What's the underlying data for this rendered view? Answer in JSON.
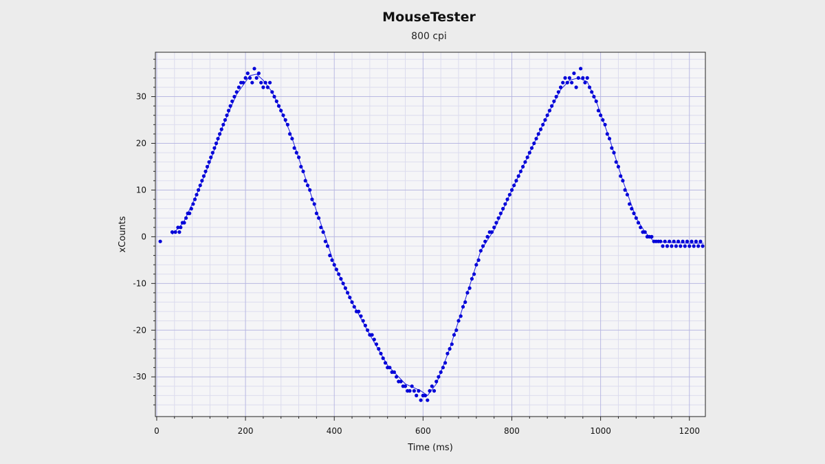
{
  "chart_data": {
    "type": "scatter",
    "title": "MouseTester",
    "subtitle": "800 cpi",
    "xlabel": "Time (ms)",
    "ylabel": "xCounts",
    "xlim": [
      -3,
      1236
    ],
    "ylim": [
      -38.5,
      39.5
    ],
    "x_ticks": [
      0,
      200,
      400,
      600,
      800,
      1000,
      1200
    ],
    "y_ticks": [
      -30,
      -20,
      -10,
      0,
      10,
      20,
      30
    ],
    "grid": true,
    "colors": {
      "background": "#ececec",
      "plot_area": "#f5f5f7",
      "major_grid": "#b8b8e2",
      "minor_grid": "#dcdcee",
      "series": "#0000d8",
      "line": "#1c1ce0"
    },
    "series": [
      {
        "points": [
          [
            8,
            -1
          ],
          [
            35,
            1
          ],
          [
            42,
            1
          ],
          [
            48,
            2
          ],
          [
            51,
            1
          ],
          [
            54,
            2
          ],
          [
            58,
            3
          ],
          [
            62,
            3
          ],
          [
            66,
            4
          ],
          [
            70,
            5
          ],
          [
            74,
            5
          ],
          [
            78,
            6
          ],
          [
            82,
            7
          ],
          [
            86,
            8
          ],
          [
            90,
            9
          ],
          [
            94,
            10
          ],
          [
            98,
            11
          ],
          [
            102,
            12
          ],
          [
            106,
            13
          ],
          [
            110,
            14
          ],
          [
            114,
            15
          ],
          [
            118,
            16
          ],
          [
            122,
            17
          ],
          [
            126,
            18
          ],
          [
            130,
            19
          ],
          [
            134,
            20
          ],
          [
            138,
            21
          ],
          [
            142,
            22
          ],
          [
            146,
            23
          ],
          [
            150,
            24
          ],
          [
            154,
            25
          ],
          [
            158,
            26
          ],
          [
            162,
            27
          ],
          [
            166,
            28
          ],
          [
            170,
            29
          ],
          [
            175,
            30
          ],
          [
            180,
            31
          ],
          [
            185,
            32
          ],
          [
            190,
            33
          ],
          [
            195,
            33
          ],
          [
            200,
            34
          ],
          [
            205,
            35
          ],
          [
            210,
            34
          ],
          [
            215,
            33
          ],
          [
            220,
            36
          ],
          [
            225,
            34
          ],
          [
            230,
            35
          ],
          [
            235,
            33
          ],
          [
            240,
            32
          ],
          [
            245,
            33
          ],
          [
            250,
            32
          ],
          [
            255,
            33
          ],
          [
            260,
            31
          ],
          [
            265,
            30
          ],
          [
            270,
            29
          ],
          [
            275,
            28
          ],
          [
            280,
            27
          ],
          [
            285,
            26
          ],
          [
            290,
            25
          ],
          [
            295,
            24
          ],
          [
            300,
            22
          ],
          [
            305,
            21
          ],
          [
            310,
            19
          ],
          [
            315,
            18
          ],
          [
            320,
            17
          ],
          [
            325,
            15
          ],
          [
            330,
            14
          ],
          [
            335,
            12
          ],
          [
            340,
            11
          ],
          [
            345,
            10
          ],
          [
            350,
            8
          ],
          [
            355,
            7
          ],
          [
            360,
            5
          ],
          [
            365,
            4
          ],
          [
            370,
            2
          ],
          [
            375,
            1
          ],
          [
            380,
            -1
          ],
          [
            385,
            -2
          ],
          [
            390,
            -4
          ],
          [
            395,
            -5
          ],
          [
            400,
            -6
          ],
          [
            405,
            -7
          ],
          [
            410,
            -8
          ],
          [
            415,
            -9
          ],
          [
            420,
            -10
          ],
          [
            425,
            -11
          ],
          [
            430,
            -12
          ],
          [
            435,
            -13
          ],
          [
            440,
            -14
          ],
          [
            445,
            -15
          ],
          [
            450,
            -16
          ],
          [
            455,
            -16
          ],
          [
            460,
            -17
          ],
          [
            465,
            -18
          ],
          [
            470,
            -19
          ],
          [
            475,
            -20
          ],
          [
            480,
            -21
          ],
          [
            485,
            -21
          ],
          [
            490,
            -22
          ],
          [
            495,
            -23
          ],
          [
            500,
            -24
          ],
          [
            505,
            -25
          ],
          [
            510,
            -26
          ],
          [
            515,
            -27
          ],
          [
            520,
            -28
          ],
          [
            525,
            -28
          ],
          [
            530,
            -29
          ],
          [
            535,
            -29
          ],
          [
            540,
            -30
          ],
          [
            545,
            -31
          ],
          [
            550,
            -31
          ],
          [
            555,
            -32
          ],
          [
            560,
            -32
          ],
          [
            565,
            -33
          ],
          [
            570,
            -33
          ],
          [
            575,
            -32
          ],
          [
            580,
            -33
          ],
          [
            585,
            -34
          ],
          [
            590,
            -33
          ],
          [
            595,
            -35
          ],
          [
            600,
            -34
          ],
          [
            605,
            -34
          ],
          [
            610,
            -35
          ],
          [
            615,
            -33
          ],
          [
            620,
            -32
          ],
          [
            625,
            -33
          ],
          [
            630,
            -31
          ],
          [
            635,
            -30
          ],
          [
            640,
            -29
          ],
          [
            645,
            -28
          ],
          [
            650,
            -27
          ],
          [
            655,
            -25
          ],
          [
            660,
            -24
          ],
          [
            665,
            -23
          ],
          [
            670,
            -21
          ],
          [
            675,
            -20
          ],
          [
            680,
            -18
          ],
          [
            685,
            -17
          ],
          [
            690,
            -15
          ],
          [
            695,
            -14
          ],
          [
            700,
            -12
          ],
          [
            705,
            -11
          ],
          [
            710,
            -9
          ],
          [
            715,
            -8
          ],
          [
            720,
            -6
          ],
          [
            725,
            -5
          ],
          [
            730,
            -3
          ],
          [
            735,
            -2
          ],
          [
            740,
            -1
          ],
          [
            745,
            0
          ],
          [
            750,
            1
          ],
          [
            755,
            1
          ],
          [
            760,
            2
          ],
          [
            765,
            3
          ],
          [
            770,
            4
          ],
          [
            775,
            5
          ],
          [
            780,
            6
          ],
          [
            785,
            7
          ],
          [
            790,
            8
          ],
          [
            795,
            9
          ],
          [
            800,
            10
          ],
          [
            805,
            11
          ],
          [
            810,
            12
          ],
          [
            815,
            13
          ],
          [
            820,
            14
          ],
          [
            825,
            15
          ],
          [
            830,
            16
          ],
          [
            835,
            17
          ],
          [
            840,
            18
          ],
          [
            845,
            19
          ],
          [
            850,
            20
          ],
          [
            855,
            21
          ],
          [
            860,
            22
          ],
          [
            865,
            23
          ],
          [
            870,
            24
          ],
          [
            875,
            25
          ],
          [
            880,
            26
          ],
          [
            885,
            27
          ],
          [
            890,
            28
          ],
          [
            895,
            29
          ],
          [
            900,
            30
          ],
          [
            905,
            31
          ],
          [
            910,
            32
          ],
          [
            915,
            33
          ],
          [
            920,
            34
          ],
          [
            925,
            33
          ],
          [
            930,
            34
          ],
          [
            935,
            33
          ],
          [
            940,
            35
          ],
          [
            945,
            32
          ],
          [
            950,
            34
          ],
          [
            955,
            36
          ],
          [
            960,
            34
          ],
          [
            965,
            33
          ],
          [
            970,
            34
          ],
          [
            975,
            32
          ],
          [
            980,
            31
          ],
          [
            985,
            30
          ],
          [
            990,
            29
          ],
          [
            995,
            27
          ],
          [
            1000,
            26
          ],
          [
            1005,
            25
          ],
          [
            1010,
            24
          ],
          [
            1015,
            22
          ],
          [
            1020,
            21
          ],
          [
            1025,
            19
          ],
          [
            1030,
            18
          ],
          [
            1035,
            16
          ],
          [
            1040,
            15
          ],
          [
            1045,
            13
          ],
          [
            1050,
            12
          ],
          [
            1055,
            10
          ],
          [
            1060,
            9
          ],
          [
            1065,
            7
          ],
          [
            1070,
            6
          ],
          [
            1075,
            5
          ],
          [
            1080,
            4
          ],
          [
            1085,
            3
          ],
          [
            1090,
            2
          ],
          [
            1095,
            1
          ],
          [
            1100,
            1
          ],
          [
            1105,
            0
          ],
          [
            1110,
            0
          ],
          [
            1115,
            0
          ],
          [
            1120,
            -1
          ],
          [
            1125,
            -1
          ],
          [
            1130,
            -1
          ],
          [
            1135,
            -1
          ],
          [
            1140,
            -2
          ],
          [
            1145,
            -1
          ],
          [
            1150,
            -2
          ],
          [
            1155,
            -1
          ],
          [
            1160,
            -2
          ],
          [
            1165,
            -1
          ],
          [
            1170,
            -2
          ],
          [
            1175,
            -1
          ],
          [
            1180,
            -2
          ],
          [
            1185,
            -1
          ],
          [
            1190,
            -2
          ],
          [
            1195,
            -1
          ],
          [
            1200,
            -2
          ],
          [
            1205,
            -1
          ],
          [
            1210,
            -2
          ],
          [
            1215,
            -1
          ],
          [
            1220,
            -2
          ],
          [
            1225,
            -1
          ],
          [
            1230,
            -2
          ]
        ],
        "trend": [
          [
            35,
            0.5
          ],
          [
            60,
            3
          ],
          [
            90,
            9
          ],
          [
            120,
            16
          ],
          [
            150,
            24
          ],
          [
            180,
            30.5
          ],
          [
            210,
            34.5
          ],
          [
            225,
            34.8
          ],
          [
            240,
            33.5
          ],
          [
            260,
            31
          ],
          [
            280,
            27
          ],
          [
            300,
            22.5
          ],
          [
            330,
            14
          ],
          [
            360,
            5.5
          ],
          [
            380,
            0
          ],
          [
            400,
            -6
          ],
          [
            440,
            -14
          ],
          [
            480,
            -21
          ],
          [
            520,
            -27.5
          ],
          [
            560,
            -31.5
          ],
          [
            595,
            -33
          ],
          [
            610,
            -34
          ],
          [
            630,
            -31.5
          ],
          [
            660,
            -24
          ],
          [
            700,
            -12
          ],
          [
            730,
            -3
          ],
          [
            760,
            1.5
          ],
          [
            800,
            10
          ],
          [
            840,
            18
          ],
          [
            880,
            26
          ],
          [
            910,
            31.5
          ],
          [
            930,
            33.5
          ],
          [
            950,
            34
          ],
          [
            970,
            33.2
          ],
          [
            990,
            29
          ],
          [
            1020,
            21
          ],
          [
            1050,
            12
          ],
          [
            1080,
            4
          ],
          [
            1100,
            1
          ],
          [
            1120,
            -1
          ],
          [
            1150,
            -1.2
          ],
          [
            1200,
            -1.4
          ],
          [
            1232,
            -1.4
          ]
        ]
      }
    ]
  }
}
